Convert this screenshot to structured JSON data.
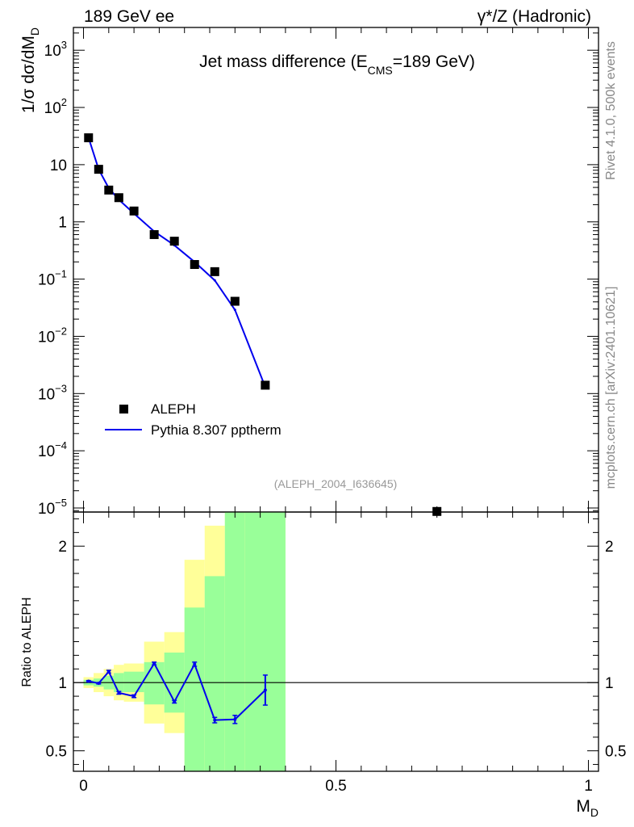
{
  "header": {
    "left_title": "189 GeV ee",
    "right_title": "γ*/Z (Hadronic)"
  },
  "side_labels": {
    "rivet": "Rivet 4.1.0,  500k events",
    "mcplots": "mcplots.cern.ch [arXiv:2401.10621]"
  },
  "chart_data": [
    {
      "type": "scatter",
      "panel": "main",
      "title": "Jet mass difference (E",
      "title_sub": "CMS",
      "title_tail": "=189 GeV)",
      "ylabel": "1/σ  dσ/dM",
      "ylabel_sub": "D",
      "yscale": "log",
      "ylim": [
        8.5e-06,
        2500
      ],
      "xlim": [
        -0.02,
        1.02
      ],
      "y_ticks": [
        {
          "value": 1e-05,
          "base": "10",
          "exp": "−5"
        },
        {
          "value": 0.0001,
          "base": "10",
          "exp": "−4"
        },
        {
          "value": 0.001,
          "base": "10",
          "exp": "−3"
        },
        {
          "value": 0.01,
          "base": "10",
          "exp": "−2"
        },
        {
          "value": 0.1,
          "base": "10",
          "exp": "−1"
        },
        {
          "value": 1,
          "base": "1",
          "exp": ""
        },
        {
          "value": 10,
          "base": "10",
          "exp": ""
        },
        {
          "value": 100,
          "base": "10",
          "exp": "2"
        },
        {
          "value": 1000,
          "base": "10",
          "exp": "3"
        }
      ],
      "legend": [
        {
          "name": "ALEPH",
          "style": "marker"
        },
        {
          "name": "Pythia 8.307 pptherm",
          "style": "line",
          "color": "#0000ee"
        }
      ],
      "annotation": "(ALEPH_2004_I636645)",
      "series": [
        {
          "name": "ALEPH",
          "x": [
            0.01,
            0.03,
            0.05,
            0.07,
            0.1,
            0.14,
            0.18,
            0.22,
            0.26,
            0.3,
            0.36,
            0.7
          ],
          "y": [
            29.5,
            8.3,
            3.6,
            2.65,
            1.55,
            0.6,
            0.46,
            0.18,
            0.135,
            0.041,
            0.0014,
            8.7e-06
          ]
        },
        {
          "name": "Pythia 8.307 pptherm",
          "color": "#0000ee",
          "x": [
            0.01,
            0.03,
            0.05,
            0.07,
            0.1,
            0.14,
            0.18,
            0.22,
            0.26,
            0.3,
            0.36
          ],
          "y": [
            29.5,
            8.3,
            3.9,
            2.45,
            1.4,
            0.68,
            0.39,
            0.2,
            0.095,
            0.029,
            0.0013
          ]
        }
      ]
    },
    {
      "type": "line",
      "panel": "ratio",
      "ylabel": "Ratio to ALEPH",
      "xlabel": "M",
      "xlabel_sub": "D",
      "ylim": [
        0.35,
        2.25
      ],
      "xlim": [
        -0.02,
        1.02
      ],
      "y_ticks": [
        0.5,
        1,
        2
      ],
      "y_tick_labels": [
        "0.5",
        "1",
        "2"
      ],
      "x_ticks": [
        0,
        0.5,
        1
      ],
      "x_tick_labels": [
        "0",
        "0.5",
        "1"
      ],
      "bands": {
        "bin_edges": [
          0.0,
          0.02,
          0.04,
          0.06,
          0.08,
          0.12,
          0.16,
          0.2,
          0.24,
          0.28,
          0.32,
          0.4
        ],
        "inner_lo": [
          0.98,
          0.97,
          0.95,
          0.93,
          0.93,
          0.84,
          0.78,
          0.35,
          0.35,
          0.35,
          0.35
        ],
        "inner_hi": [
          1.02,
          1.03,
          1.05,
          1.07,
          1.08,
          1.15,
          1.22,
          1.55,
          1.78,
          2.3,
          2.3
        ],
        "outer_lo": [
          0.96,
          0.93,
          0.9,
          0.87,
          0.86,
          0.7,
          0.63,
          0.35,
          0.35,
          0.35,
          0.35
        ],
        "outer_hi": [
          1.04,
          1.07,
          1.1,
          1.13,
          1.14,
          1.3,
          1.37,
          1.9,
          2.15,
          2.3,
          2.3
        ],
        "inner_color": "#99ff99",
        "outer_color": "#ffff99"
      },
      "series": [
        {
          "name": "Pythia 8.307 pptherm",
          "color": "#0000ee",
          "x": [
            0.01,
            0.03,
            0.05,
            0.07,
            0.1,
            0.14,
            0.18,
            0.22,
            0.26,
            0.3,
            0.36
          ],
          "y": [
            1.01,
            0.995,
            1.08,
            0.925,
            0.9,
            1.14,
            0.86,
            1.135,
            0.725,
            0.73,
            0.945
          ],
          "err": [
            0.005,
            0.005,
            0.01,
            0.01,
            0.01,
            0.01,
            0.01,
            0.015,
            0.02,
            0.03,
            0.11
          ]
        }
      ]
    }
  ]
}
